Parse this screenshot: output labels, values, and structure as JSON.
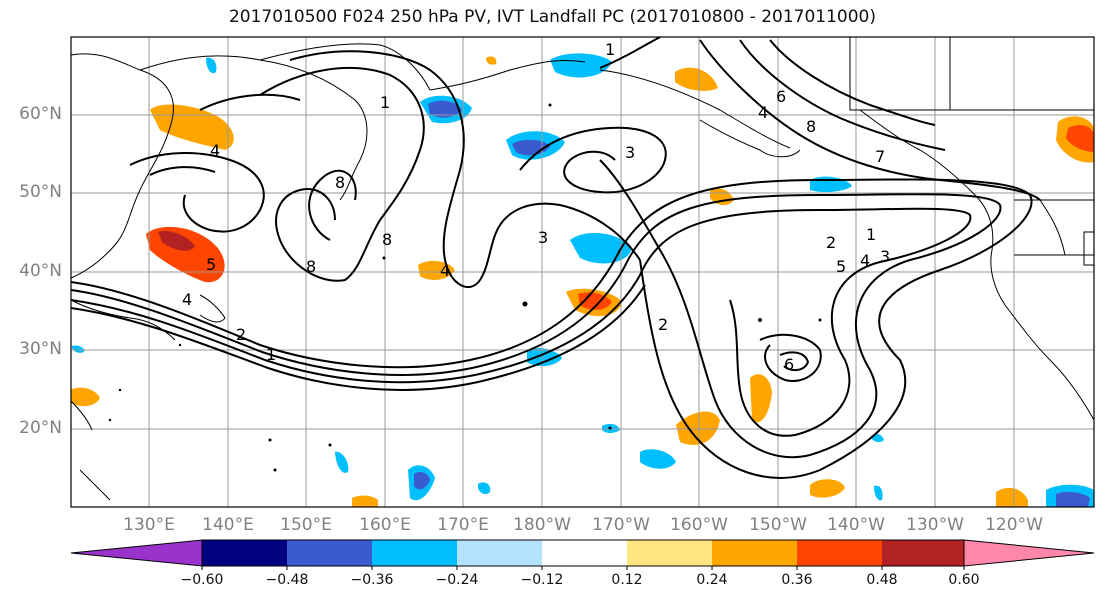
{
  "title": "2017010500 F024 250 hPa PV, IVT Landfall PC (2017010800 - 2017011000)",
  "map": {
    "lat_labels": [
      "60°N",
      "50°N",
      "40°N",
      "30°N",
      "20°N"
    ],
    "lon_labels": [
      "130°E",
      "140°E",
      "150°E",
      "160°E",
      "170°E",
      "180°W",
      "170°W",
      "160°W",
      "150°W",
      "140°W",
      "130°W",
      "120°W"
    ],
    "contour_labels": [
      "1",
      "2",
      "3",
      "4",
      "5",
      "6",
      "7",
      "8",
      "1",
      "2",
      "3",
      "4",
      "5",
      "6",
      "1",
      "2",
      "4",
      "8",
      "8",
      "8",
      "3",
      "1",
      "4",
      "4"
    ],
    "colors": {
      "coast": "#000000",
      "grid": "#999999",
      "contour": "#000000"
    }
  },
  "colorbar": {
    "tick_labels": [
      "−0.60",
      "−0.48",
      "−0.36",
      "−0.24",
      "−0.12",
      "0.12",
      "0.24",
      "0.36",
      "0.48",
      "0.60"
    ],
    "colors": [
      "#9933cc",
      "#000080",
      "#3a5bcf",
      "#00bfff",
      "#b3e3ff",
      "#ffffff",
      "#ffe680",
      "#ffa500",
      "#ff4500",
      "#b22222",
      "#ff88aa"
    ]
  }
}
